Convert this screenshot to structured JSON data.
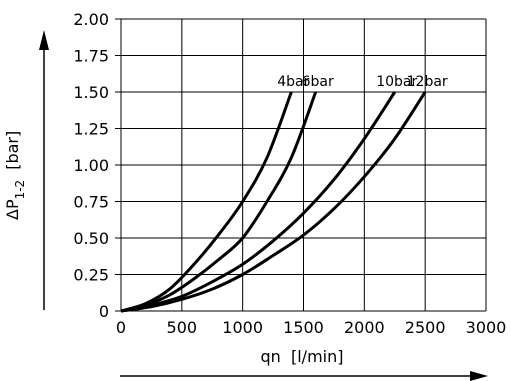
{
  "chart_data": {
    "type": "line",
    "xlabel": "qn  [l/min]",
    "ylabel_main": "ΔP",
    "ylabel_sub": "1-2",
    "ylabel_unit": "[bar]",
    "xlim": [
      0,
      3000
    ],
    "ylim": [
      0,
      2
    ],
    "x_ticks": [
      "0",
      "500",
      "1000",
      "1500",
      "2000",
      "2500",
      "3000"
    ],
    "y_ticks": [
      "0",
      "0.25",
      "0.50",
      "0.75",
      "1.00",
      "1.25",
      "1.50",
      "1.75",
      "2.00"
    ],
    "grid": true,
    "series": [
      {
        "name": "4bar",
        "x": [
          0,
          200,
          400,
          600,
          800,
          1000,
          1200,
          1400
        ],
        "y": [
          0,
          0.05,
          0.15,
          0.32,
          0.52,
          0.75,
          1.05,
          1.5
        ]
      },
      {
        "name": "6bar",
        "x": [
          0,
          200,
          400,
          600,
          800,
          1000,
          1200,
          1400,
          1600
        ],
        "y": [
          0,
          0.04,
          0.11,
          0.22,
          0.35,
          0.5,
          0.75,
          1.05,
          1.5
        ]
      },
      {
        "name": "10bar",
        "x": [
          0,
          250,
          500,
          750,
          1000,
          1250,
          1500,
          1750,
          2000,
          2250
        ],
        "y": [
          0,
          0.04,
          0.1,
          0.2,
          0.32,
          0.48,
          0.67,
          0.9,
          1.18,
          1.5
        ]
      },
      {
        "name": "12bar",
        "x": [
          0,
          250,
          500,
          750,
          1000,
          1250,
          1500,
          1750,
          2000,
          2250,
          2500
        ],
        "y": [
          0,
          0.03,
          0.08,
          0.15,
          0.25,
          0.38,
          0.52,
          0.7,
          0.92,
          1.18,
          1.5
        ]
      }
    ]
  }
}
